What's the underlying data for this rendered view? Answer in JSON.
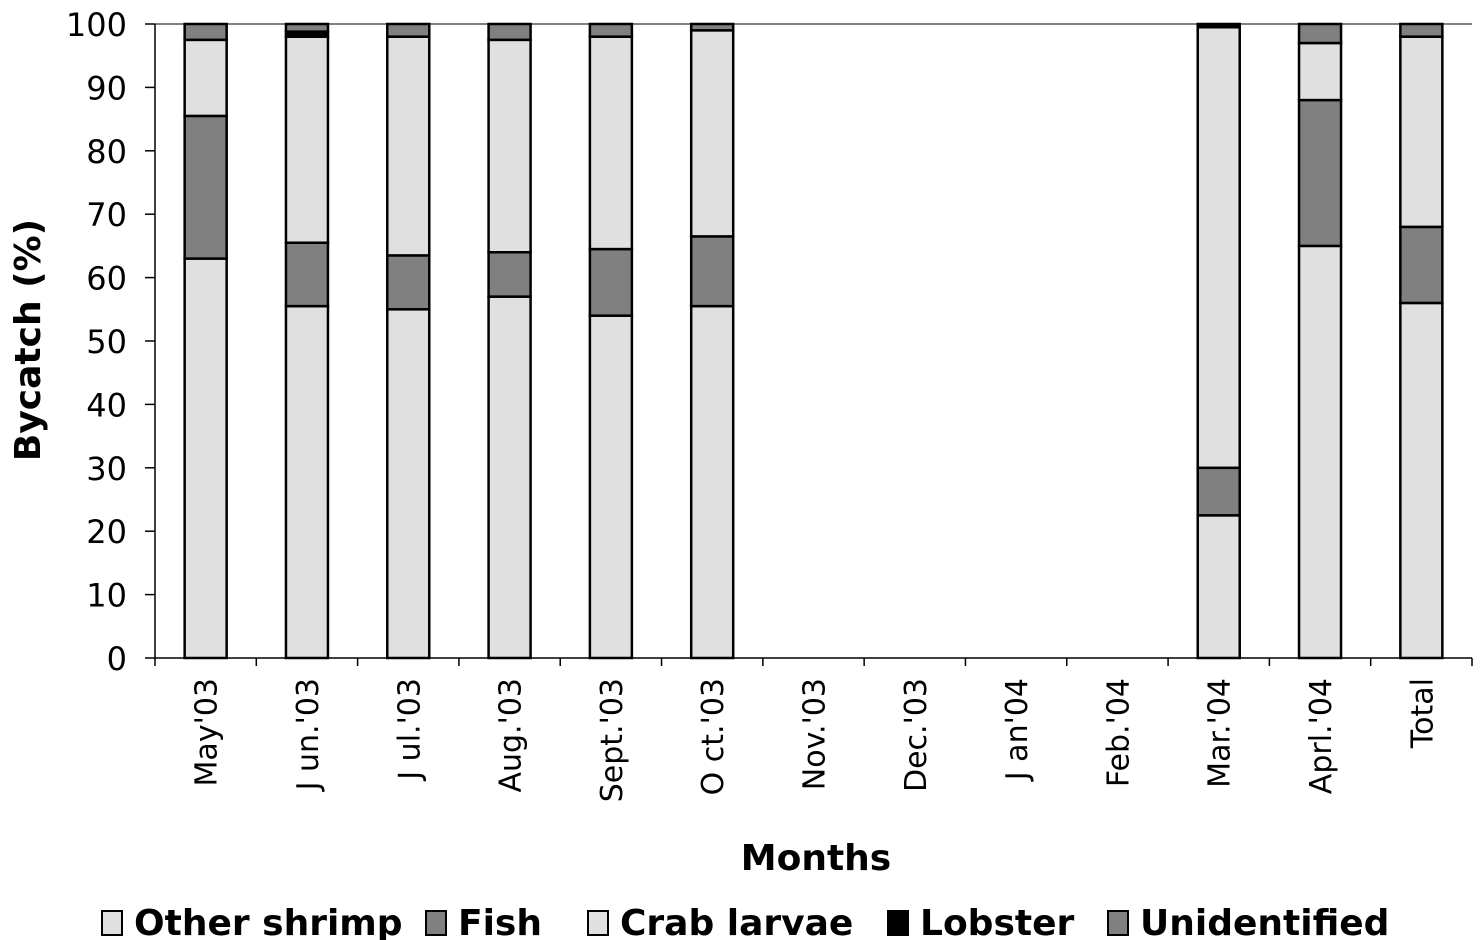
{
  "chart_data": {
    "type": "bar",
    "stacked": true,
    "title": "",
    "xlabel": "Months",
    "ylabel": "Bycatch (%)",
    "ylim": [
      0,
      100
    ],
    "yticks": [
      0,
      10,
      20,
      30,
      40,
      50,
      60,
      70,
      80,
      90,
      100
    ],
    "grid": false,
    "legend": "bottom",
    "categories": [
      "May'03",
      "J un.'03",
      "J ul.'03",
      "Aug.'03",
      "Sept.'03",
      "O ct.'03",
      "Nov.'03",
      "Dec.'03",
      "J an'04",
      "Feb.'04",
      "Mar.'04",
      "Aprl.'04",
      "Total"
    ],
    "series": [
      {
        "name": "Other shrimp",
        "color": "#e0e0e0",
        "values": [
          63,
          55.5,
          55,
          57,
          54,
          55.5,
          0,
          0,
          0,
          0,
          22.5,
          65,
          56
        ]
      },
      {
        "name": "Fish",
        "color": "#808080",
        "values": [
          22.5,
          10,
          8.5,
          7,
          10.5,
          11,
          0,
          0,
          0,
          0,
          7.5,
          23,
          12
        ]
      },
      {
        "name": "Crab larvae",
        "color": "#e0e0e0",
        "values": [
          12,
          32.5,
          34.5,
          33.5,
          33.5,
          32.5,
          0,
          0,
          0,
          0,
          69.5,
          9,
          30
        ]
      },
      {
        "name": "Lobster",
        "color": "#000000",
        "values": [
          0,
          0.8,
          0,
          0,
          0,
          0,
          0,
          0,
          0,
          0,
          0.5,
          0,
          0
        ]
      },
      {
        "name": "Unidentified",
        "color": "#808080",
        "values": [
          2.5,
          1.2,
          2,
          2.5,
          2,
          1,
          0,
          0,
          0,
          0,
          0,
          3,
          2
        ]
      }
    ]
  }
}
